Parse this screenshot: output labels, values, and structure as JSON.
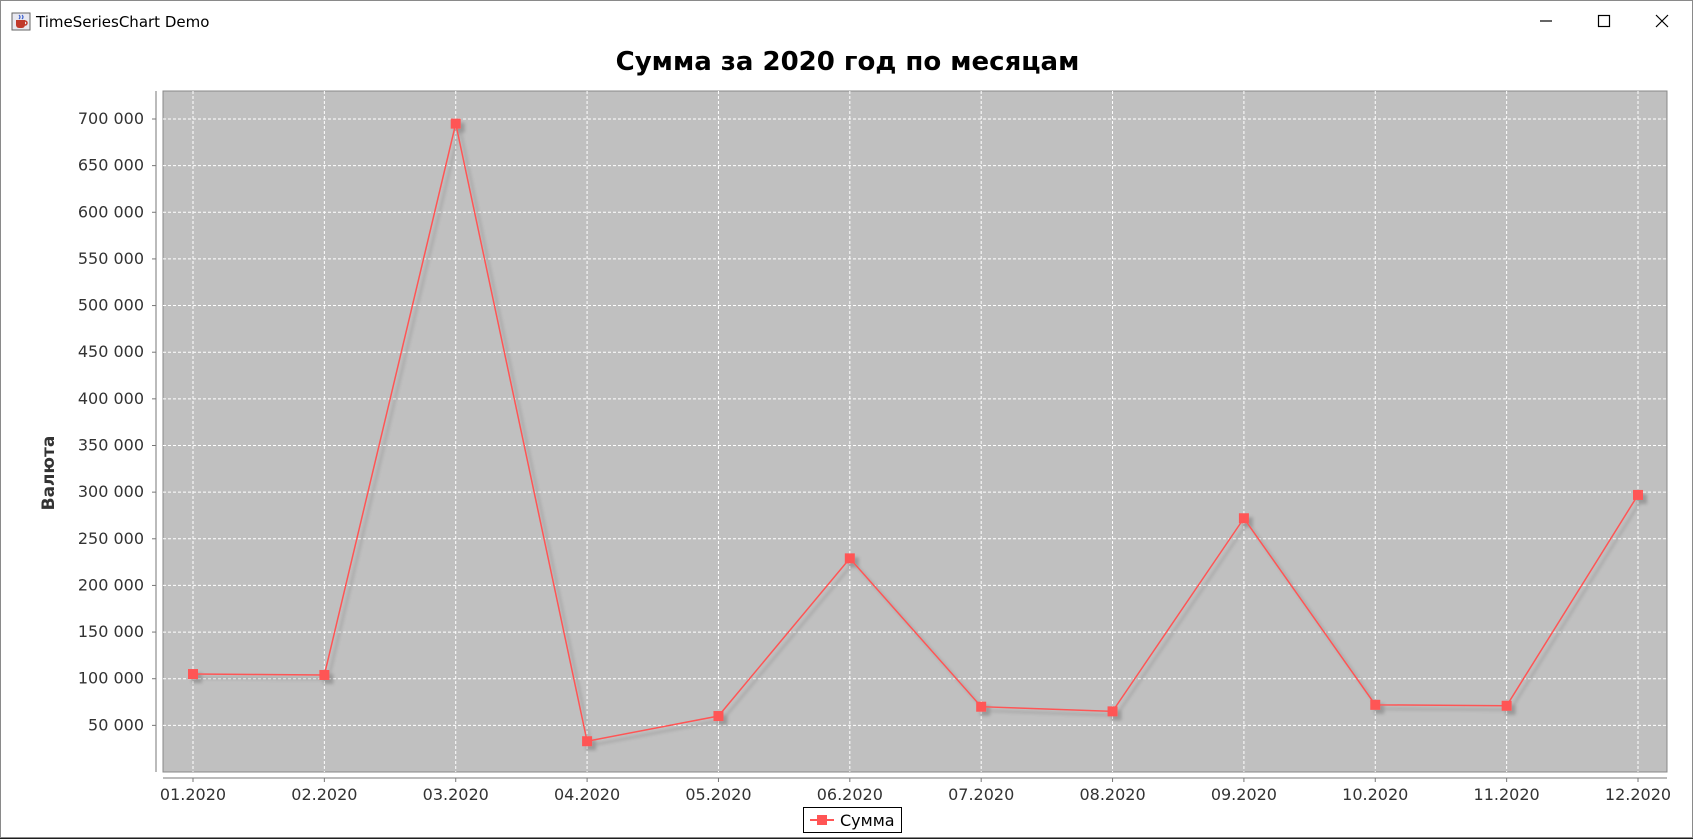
{
  "window": {
    "title": "TimeSeriesChart Demo",
    "app_icon": "java-cup-icon",
    "controls": [
      "minimize-icon",
      "maximize-icon",
      "close-icon"
    ]
  },
  "chart_data": {
    "type": "line",
    "title": "Сумма за 2020 год по месяцам",
    "xlabel": "",
    "ylabel": "Валюта",
    "categories": [
      "01.2020",
      "02.2020",
      "03.2020",
      "04.2020",
      "05.2020",
      "06.2020",
      "07.2020",
      "08.2020",
      "09.2020",
      "10.2020",
      "11.2020",
      "12.2020"
    ],
    "series": [
      {
        "name": "Сумма",
        "color": "#ff5555",
        "values": [
          105000,
          104000,
          695000,
          33000,
          60000,
          229000,
          70000,
          65000,
          272000,
          72000,
          71000,
          297000
        ]
      }
    ],
    "ylim": [
      0,
      730000
    ],
    "yticks": [
      50000,
      100000,
      150000,
      200000,
      250000,
      300000,
      350000,
      400000,
      450000,
      500000,
      550000,
      600000,
      650000,
      700000
    ],
    "ytick_labels": [
      "50 000",
      "100 000",
      "150 000",
      "200 000",
      "250 000",
      "300 000",
      "350 000",
      "400 000",
      "450 000",
      "500 000",
      "550 000",
      "600 000",
      "650 000",
      "700 000"
    ],
    "grid": true,
    "legend": "bottom-center",
    "plot_background": "#c0c0c0"
  }
}
